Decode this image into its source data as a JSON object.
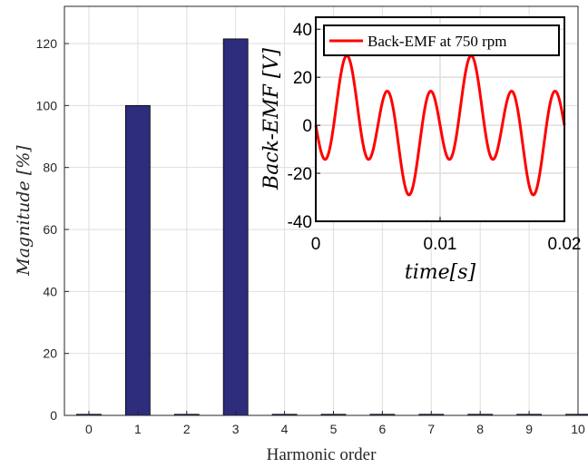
{
  "chart_data": [
    {
      "type": "bar",
      "categories": [
        "0",
        "1",
        "2",
        "3",
        "4",
        "5",
        "6",
        "7",
        "8",
        "9",
        "10"
      ],
      "values": [
        0,
        100,
        0,
        121.5,
        0,
        0,
        0,
        0,
        0,
        0,
        0
      ],
      "xlabel": "Harmonic order",
      "ylabel": "Magnitude [%]",
      "xlim": [
        -0.5,
        10
      ],
      "ylim": [
        0,
        132
      ],
      "yticks": [
        0,
        20,
        40,
        60,
        80,
        100,
        120
      ],
      "xticks": [
        0,
        1,
        2,
        3,
        4,
        5,
        6,
        7,
        8,
        9,
        10
      ],
      "grid": true,
      "bar_color": "#2E2C7C"
    },
    {
      "type": "line",
      "series": [
        {
          "name": "Back-EMF at 750 rpm",
          "color": "#FF0000",
          "fundamental_amplitude": 10,
          "third_harmonic_amplitude": 19,
          "period_s": 0.01
        }
      ],
      "xlabel": "time[s]",
      "ylabel": "Back-EMF [V]",
      "xlim": [
        0,
        0.02
      ],
      "ylim": [
        -40,
        45
      ],
      "xticks": [
        "0",
        "0.01",
        "0.02"
      ],
      "yticks": [
        "40",
        "20",
        "0",
        "-20",
        "-40"
      ],
      "grid": true,
      "legend_position": "top"
    }
  ]
}
